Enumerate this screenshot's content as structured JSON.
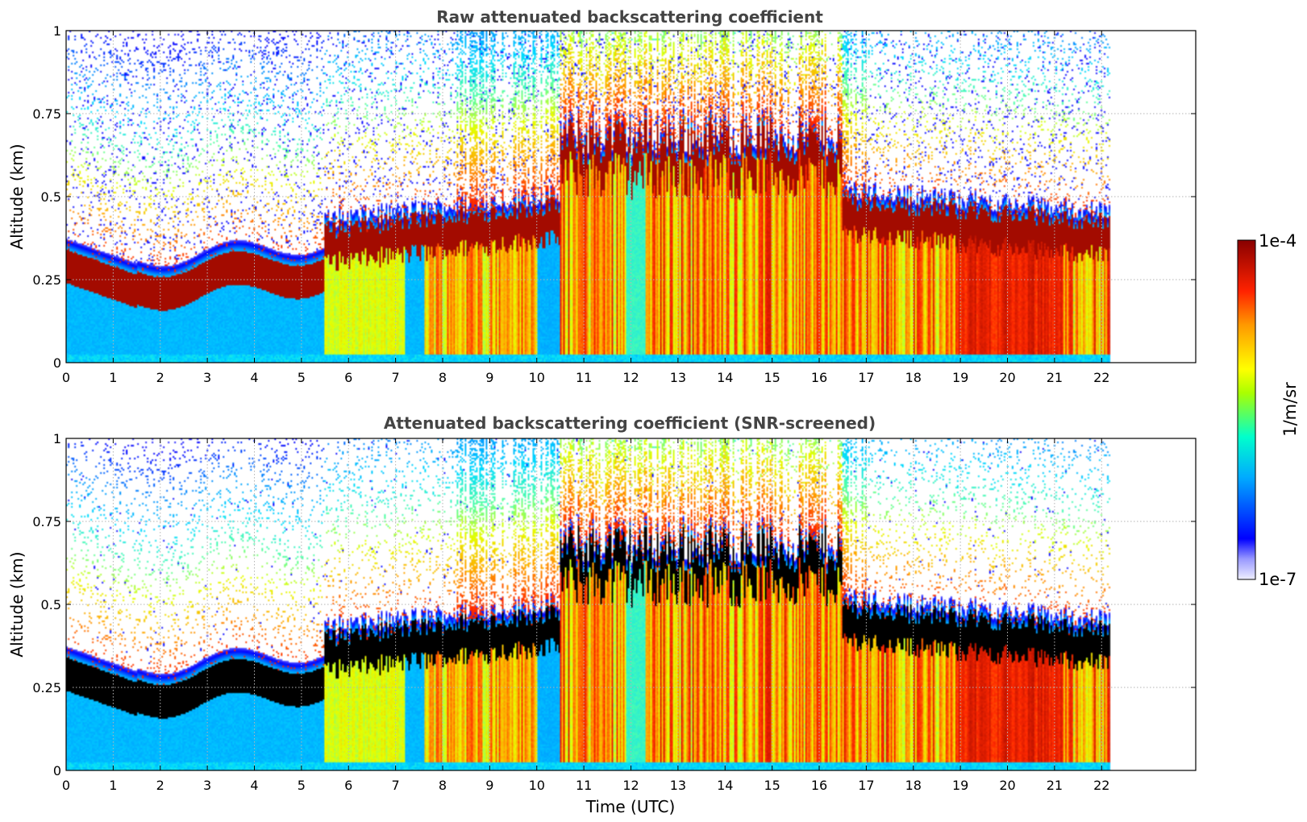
{
  "chart_data": [
    {
      "type": "heatmap",
      "title": "Raw attenuated backscattering coefficient",
      "xlabel": "",
      "ylabel": "Altitude (km)",
      "xlim": [
        0,
        24
      ],
      "ylim": [
        0,
        1
      ],
      "x_ticks": [
        "0",
        "1",
        "2",
        "3",
        "4",
        "5",
        "6",
        "7",
        "8",
        "9",
        "10",
        "11",
        "12",
        "13",
        "14",
        "15",
        "16",
        "17",
        "18",
        "19",
        "20",
        "21",
        "22"
      ],
      "y_ticks": [
        "0",
        "0.25",
        "0.5",
        "0.75",
        "1"
      ],
      "grid": true,
      "data_extent_hours": [
        0,
        22.2
      ],
      "screened": false
    },
    {
      "type": "heatmap",
      "title": "Attenuated backscattering coefficient (SNR-screened)",
      "xlabel": "Time (UTC)",
      "ylabel": "Altitude (km)",
      "xlim": [
        0,
        24
      ],
      "ylim": [
        0,
        1
      ],
      "x_ticks": [
        "0",
        "1",
        "2",
        "3",
        "4",
        "5",
        "6",
        "7",
        "8",
        "9",
        "10",
        "11",
        "12",
        "13",
        "14",
        "15",
        "16",
        "17",
        "18",
        "19",
        "20",
        "21",
        "22"
      ],
      "y_ticks": [
        "0",
        "0.25",
        "0.5",
        "0.75",
        "1"
      ],
      "grid": true,
      "data_extent_hours": [
        0,
        22.2
      ],
      "screened": true
    }
  ],
  "colorbar": {
    "label": "1/m/sr",
    "max_label": "1e-4",
    "min_label": "1e-7",
    "colormap": "jet",
    "scale": "log",
    "range": [
      1e-07,
      0.0001
    ],
    "colors": [
      "#e8e8ff",
      "#0000ff",
      "#00bfff",
      "#00ffaa",
      "#ffff00",
      "#ff8000",
      "#ff0000",
      "#800000"
    ]
  }
}
